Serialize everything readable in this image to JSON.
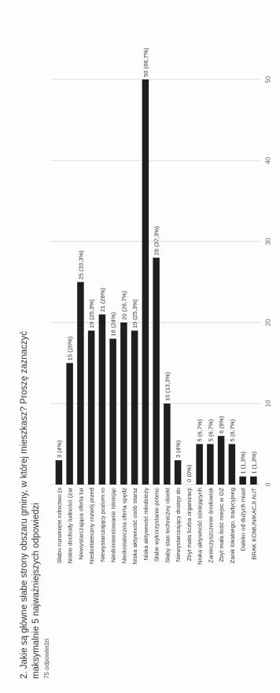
{
  "chart_data": {
    "type": "bar",
    "orientation": "horizontal",
    "title_line1": "2. Jakie są główne słabe strony obszaru gminy, w której mieszkasz? Proszę zaznaczyć",
    "title_line2": "maksymalnie 5 najważniejszych odpowiedzi",
    "subtitle": "75 odpowiedzi",
    "xlim": [
      0,
      50
    ],
    "x_ticks": [
      "0",
      "10",
      "20",
      "30",
      "40",
      "50"
    ],
    "grid": true,
    "bar_color": "#1e1e1e",
    "categories": [
      "Słabo rozwinięte rolnictwo (s",
      "Niskie dochody ludności (zar",
      "Niewystarczająca oferta tur",
      "Niedostateczny rozwój przed",
      "Niewystarczający poziom ro",
      "Niedoinwestowanie istniejąc",
      "Niedostateczna oferta spędz",
      "Niska aktywność osób starsz",
      "Niska aktywność młodzieży",
      "Słabe wykorzystanie potenc",
      "Słaby stan techniczny obiekt",
      "Niewystarczający dostęp do",
      "Zbyt mała liczba organizacji",
      "Niska aktywność istniejących",
      "Zanieczyszczenie środowisk",
      "Zbyt mała ilość miejsc w OZ",
      "Zanik lokalnego, tradycyjneg",
      "Daleko od dużych miast",
      "BRAK KOMUNIKACJI AUT"
    ],
    "values": [
      3,
      15,
      25,
      19,
      21,
      18,
      20,
      19,
      50,
      28,
      10,
      3,
      0,
      5,
      5,
      6,
      5,
      1,
      1
    ],
    "data_labels": [
      "3 (4%)",
      "15 (20%)",
      "25 (33,3%)",
      "19 (25,3%)",
      "21 (28%)",
      "18 (24%)",
      "20 (26,7%)",
      "19 (25,3%)",
      "50 (66,7%)",
      "28 (37,3%)",
      "10 (13,3%)",
      "3 (4%)",
      "0 (0%)",
      "5 (6,7%)",
      "5 (6,7%)",
      "6 (8%)",
      "5 (6,7%)",
      "1 (1,3%)",
      "1 (1,3%)"
    ]
  }
}
